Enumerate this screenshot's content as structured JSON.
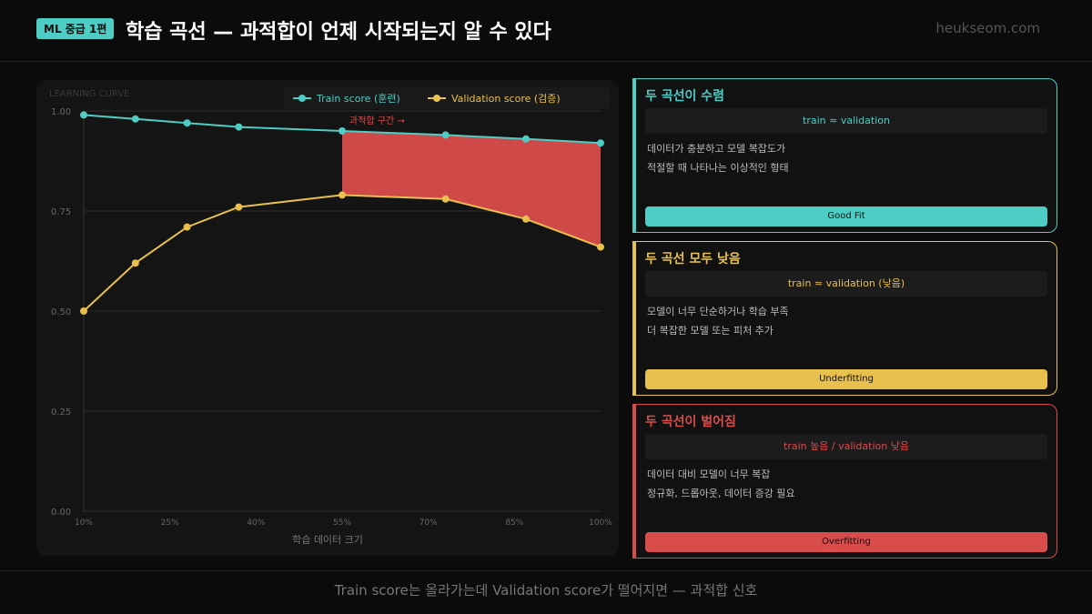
{
  "header": {
    "badge": "ML 중급 1편",
    "title": "학습 곡선 — 과적합이 언제 시작되는지 알 수 있다",
    "site": "heukseom.com"
  },
  "chart_data": {
    "type": "line",
    "panel_label": "LEARNING CURVE",
    "xlabel": "학습 데이터 크기",
    "ylabel": "",
    "x_tick_labels": [
      "10%",
      "25%",
      "40%",
      "55%",
      "70%",
      "85%",
      "100%"
    ],
    "x_ticks": [
      10,
      25,
      40,
      55,
      70,
      85,
      100
    ],
    "y_tick_labels": [
      "1.00",
      "0.75",
      "0.50",
      "0.25",
      "0.00"
    ],
    "y_ticks": [
      1,
      0.75,
      0.5,
      0.25,
      0
    ],
    "xlim": [
      10,
      100
    ],
    "ylim": [
      0,
      1
    ],
    "grid": true,
    "legend_position": "top-right",
    "x": [
      10,
      19,
      28,
      37,
      55,
      73,
      87,
      100
    ],
    "series": [
      {
        "name": "Train score (훈련)",
        "color": "#4ecdc4",
        "values": [
          0.99,
          0.98,
          0.97,
          0.96,
          0.95,
          0.94,
          0.93,
          0.92
        ]
      },
      {
        "name": "Validation score (검증)",
        "color": "#e8c04e",
        "values": [
          0.5,
          0.62,
          0.71,
          0.76,
          0.79,
          0.78,
          0.73,
          0.66
        ]
      }
    ],
    "annotation": {
      "text": "과적합 구간 →",
      "color": "#d94c4c",
      "shaded_from_x": 55
    }
  },
  "cards": [
    {
      "title": "두 곡선이 수렴",
      "formula": "train ≈ validation",
      "lines": [
        "데이터가 충분하고 모델 복잡도가",
        "적절할 때 나타나는 이상적인 형태"
      ],
      "verdict": "Good Fit",
      "color": "#4ecdc4"
    },
    {
      "title": "두 곡선 모두 낮음",
      "formula": "train ≈ validation (낮음)",
      "lines": [
        "모델이 너무 단순하거나 학습 부족",
        "더 복잡한 모델 또는 피처 추가"
      ],
      "verdict": "Underfitting",
      "color": "#e8c04e"
    },
    {
      "title": "두 곡선이 벌어짐",
      "formula": "train 높음 / validation 낮음",
      "lines": [
        "데이터 대비 모델이 너무 복잡",
        "정규화, 드롭아웃, 데이터 증강 필요"
      ],
      "verdict": "Overfitting",
      "color": "#d94c4c"
    }
  ],
  "footer": "Train score는 올라가는데 Validation score가 떨어지면 — 과적합 신호"
}
